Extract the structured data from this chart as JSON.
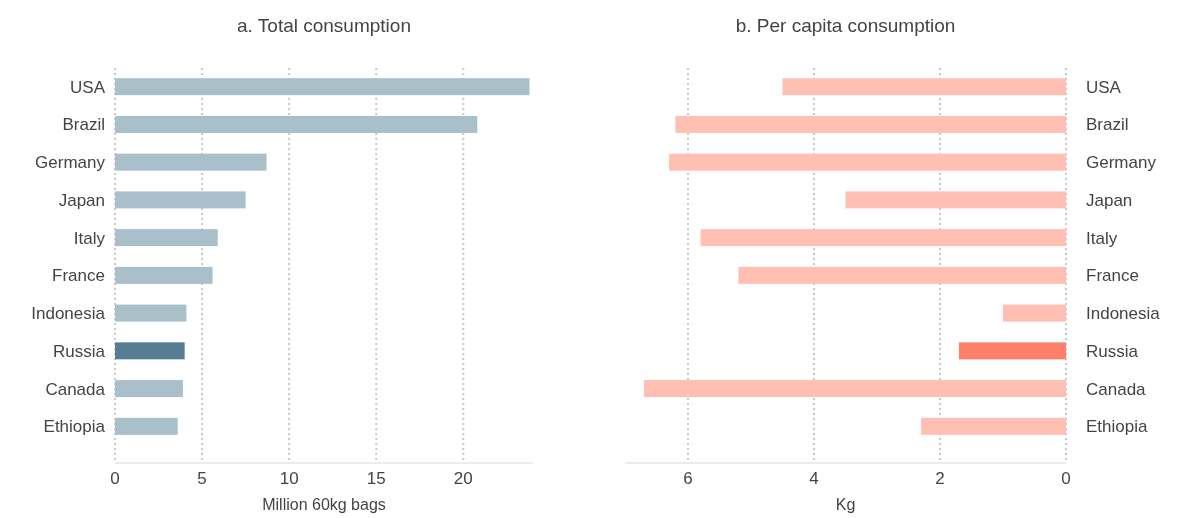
{
  "chart_data": [
    {
      "type": "bar",
      "orientation": "horizontal",
      "title": "a. Total consumption",
      "xlabel": "Million 60kg bags",
      "categories": [
        "USA",
        "Brazil",
        "Germany",
        "Japan",
        "Italy",
        "France",
        "Indonesia",
        "Russia",
        "Canada",
        "Ethiopia"
      ],
      "values": [
        23.8,
        20.8,
        8.7,
        7.5,
        5.9,
        5.6,
        4.1,
        4.0,
        3.9,
        3.6
      ],
      "colors": [
        "#a9bfca",
        "#a9bfca",
        "#a9bfca",
        "#a9bfca",
        "#a9bfca",
        "#a9bfca",
        "#a9bfca",
        "#567d91",
        "#a9bfca",
        "#a9bfca"
      ],
      "xlim": [
        0,
        24
      ],
      "xticks": [
        0,
        5,
        10,
        15,
        20
      ],
      "grid": "x"
    },
    {
      "type": "bar",
      "orientation": "horizontal",
      "title": "b. Per capita consumption",
      "xlabel": "Kg",
      "categories": [
        "USA",
        "Brazil",
        "Germany",
        "Japan",
        "Italy",
        "France",
        "Indonesia",
        "Russia",
        "Canada",
        "Ethiopia"
      ],
      "values": [
        4.5,
        6.2,
        6.3,
        3.5,
        5.8,
        5.2,
        1.0,
        1.7,
        6.7,
        2.3
      ],
      "colors": [
        "#ffbfb3",
        "#ffbfb3",
        "#ffbfb3",
        "#ffbfb3",
        "#ffbfb3",
        "#ffbfb3",
        "#ffbfb3",
        "#ff806a",
        "#ffbfb3",
        "#ffbfb3"
      ],
      "xlim": [
        7,
        0
      ],
      "xticks": [
        6,
        4,
        2,
        0
      ],
      "grid": "x"
    }
  ]
}
